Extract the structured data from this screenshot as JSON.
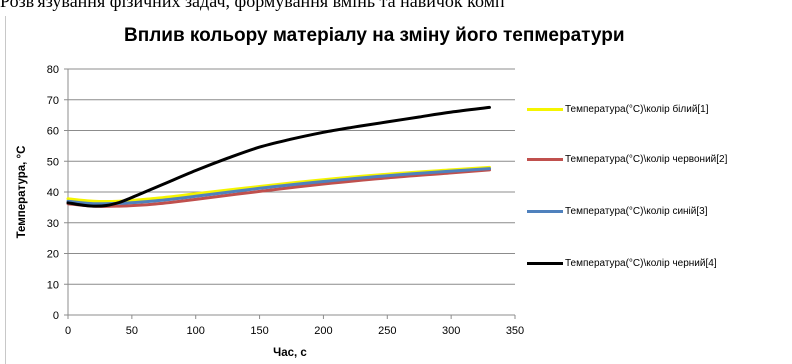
{
  "page": {
    "top_text": "Розв'язування фізичних задач, формування вмінь та навичок комп"
  },
  "chart_data": {
    "type": "line",
    "title": "Вплив кольору матеріалу на зміну його тепмератури",
    "xlabel": "Час, с",
    "ylabel": "Температура, °С",
    "xlim": [
      0,
      350
    ],
    "ylim": [
      0,
      80
    ],
    "xticks": [
      0,
      50,
      100,
      150,
      200,
      250,
      300,
      350
    ],
    "yticks": [
      0,
      10,
      20,
      30,
      40,
      50,
      60,
      70,
      80
    ],
    "grid": "horizontal",
    "legend_position": "right",
    "series": [
      {
        "name": "Температура(°С)\\колір білий[1]",
        "color": "#f5f500",
        "x": [
          0,
          20,
          40,
          60,
          80,
          100,
          150,
          200,
          250,
          300,
          330
        ],
        "y": [
          37.8,
          37.0,
          37.0,
          37.6,
          38.4,
          39.4,
          41.8,
          44.0,
          45.8,
          47.2,
          48.0
        ]
      },
      {
        "name": "Температура(°С)\\колір червоний[2]",
        "color": "#c0504d",
        "x": [
          0,
          20,
          40,
          60,
          80,
          100,
          150,
          200,
          250,
          300,
          330
        ],
        "y": [
          36.2,
          35.4,
          35.4,
          35.8,
          36.6,
          37.6,
          40.2,
          42.6,
          44.6,
          46.2,
          47.2
        ]
      },
      {
        "name": "Температура(°С)\\колір синій[3]",
        "color": "#4f81bd",
        "x": [
          0,
          20,
          40,
          60,
          80,
          100,
          150,
          200,
          250,
          300,
          330
        ],
        "y": [
          37.0,
          36.2,
          36.3,
          36.8,
          37.6,
          38.6,
          41.2,
          43.4,
          45.3,
          46.8,
          47.6
        ]
      },
      {
        "name": "Температура(°С)\\колір черний[4]",
        "color": "#000000",
        "x": [
          0,
          10,
          20,
          30,
          40,
          50,
          75,
          100,
          125,
          150,
          175,
          200,
          225,
          250,
          275,
          300,
          330
        ],
        "y": [
          36.5,
          35.8,
          35.4,
          35.6,
          36.6,
          38.2,
          42.6,
          47.0,
          51.0,
          54.6,
          57.2,
          59.4,
          61.2,
          62.8,
          64.4,
          66.0,
          67.5
        ]
      }
    ]
  }
}
